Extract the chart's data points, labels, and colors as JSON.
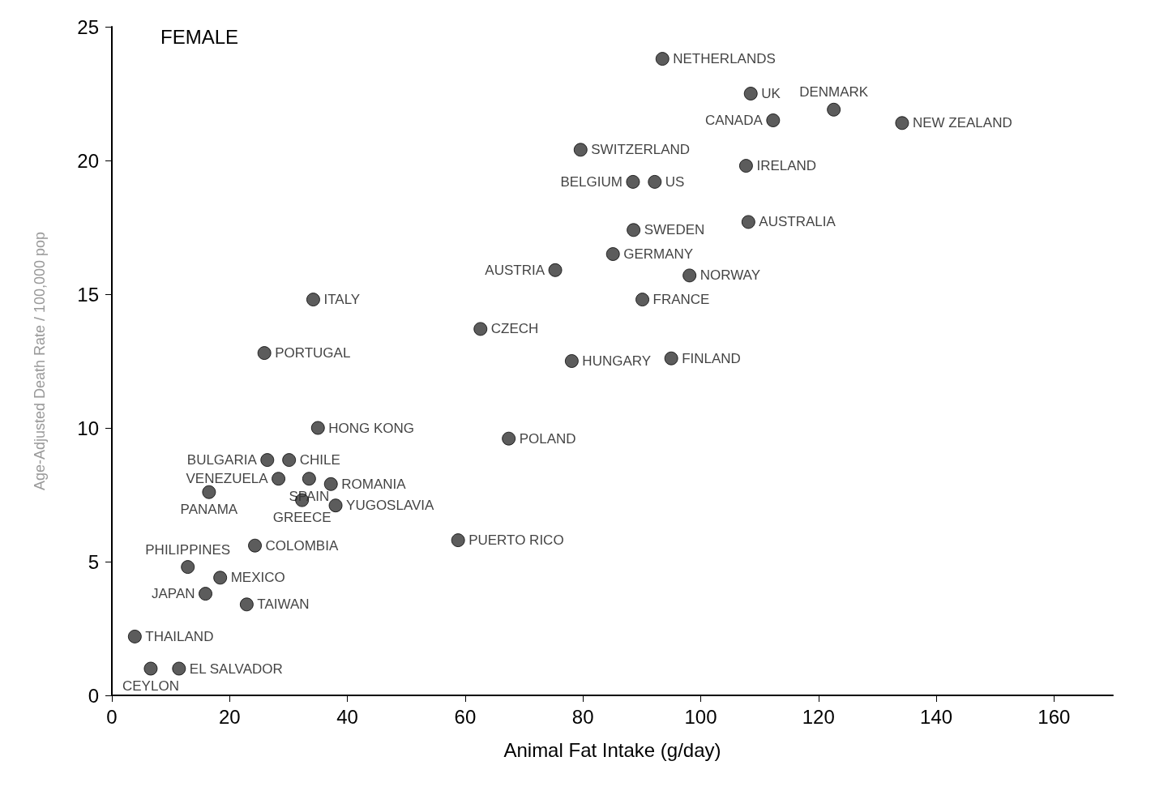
{
  "chart_data": {
    "type": "scatter",
    "title": "FEMALE",
    "xlabel": "Animal Fat Intake (g/day)",
    "ylabel": "Age-Adjusted Death Rate / 100,000 pop",
    "x": [
      93.5,
      108.5,
      122.6,
      112.3,
      134.2,
      79.6,
      107.7,
      88.5,
      92.2,
      88.6,
      108.1,
      85.1,
      75.3,
      98.1,
      90.1,
      34.2,
      62.6,
      95,
      25.9,
      78.1,
      35,
      67.4,
      26.4,
      30.1,
      28.3,
      33.5,
      37.2,
      16.5,
      32.3,
      38,
      58.8,
      24.3,
      12.9,
      18.4,
      15.9,
      22.9,
      3.9,
      6.6,
      11.4
    ],
    "values": [
      23.8,
      22.5,
      21.9,
      21.5,
      21.4,
      20.4,
      19.8,
      19.2,
      19.2,
      17.4,
      17.7,
      16.5,
      15.9,
      15.7,
      14.8,
      14.8,
      13.7,
      12.6,
      12.8,
      12.5,
      10,
      9.6,
      8.8,
      8.8,
      8.1,
      8.1,
      7.9,
      7.6,
      7.3,
      7.1,
      5.8,
      5.6,
      4.8,
      4.4,
      3.8,
      3.4,
      2.2,
      1,
      1
    ],
    "color": "#333333",
    "marker": "circle",
    "grid": false,
    "xlim": [
      0,
      170
    ],
    "xticks": [
      0,
      20,
      40,
      60,
      80,
      100,
      120,
      140,
      160
    ],
    "ylim": [
      0,
      25
    ],
    "yticks": [
      0,
      5,
      10,
      15,
      20,
      25
    ],
    "annotations": [
      {
        "text": "NETHERLANDS",
        "x": 93.5,
        "y": 23.8
      },
      {
        "text": "UK",
        "x": 108.5,
        "y": 22.5
      },
      {
        "text": "DENMARK",
        "x": 122.6,
        "y": 21.9
      },
      {
        "text": "CANADA",
        "x": 112.3,
        "y": 21.5
      },
      {
        "text": "NEW ZEALAND",
        "x": 134.2,
        "y": 21.4
      },
      {
        "text": "SWITZERLAND",
        "x": 79.6,
        "y": 20.4
      },
      {
        "text": "IRELAND",
        "x": 107.7,
        "y": 19.8
      },
      {
        "text": "BELGIUM",
        "x": 88.5,
        "y": 19.2
      },
      {
        "text": "US",
        "x": 92.2,
        "y": 19.2
      },
      {
        "text": "SWEDEN",
        "x": 88.6,
        "y": 17.4
      },
      {
        "text": "AUSTRALIA",
        "x": 108.1,
        "y": 17.7
      },
      {
        "text": "GERMANY",
        "x": 85.1,
        "y": 16.5
      },
      {
        "text": "AUSTRIA",
        "x": 75.3,
        "y": 15.9
      },
      {
        "text": "NORWAY",
        "x": 98.1,
        "y": 15.7
      },
      {
        "text": "FRANCE",
        "x": 90.1,
        "y": 14.8
      },
      {
        "text": "ITALY",
        "x": 34.2,
        "y": 14.8
      },
      {
        "text": "CZECH",
        "x": 62.6,
        "y": 13.7
      },
      {
        "text": "FINLAND",
        "x": 95,
        "y": 12.6
      },
      {
        "text": "PORTUGAL",
        "x": 25.9,
        "y": 12.8
      },
      {
        "text": "HUNGARY",
        "x": 78.1,
        "y": 12.5
      },
      {
        "text": "HONG KONG",
        "x": 35,
        "y": 10
      },
      {
        "text": "POLAND",
        "x": 67.4,
        "y": 9.6
      },
      {
        "text": "BULGARIA",
        "x": 26.4,
        "y": 8.8
      },
      {
        "text": "CHILE",
        "x": 30.1,
        "y": 8.8
      },
      {
        "text": "VENEZUELA",
        "x": 28.3,
        "y": 8.1
      },
      {
        "text": "SPAIN",
        "x": 33.5,
        "y": 8.1
      },
      {
        "text": "ROMANIA",
        "x": 37.2,
        "y": 7.9
      },
      {
        "text": "PANAMA",
        "x": 16.5,
        "y": 7.6
      },
      {
        "text": "GREECE",
        "x": 32.3,
        "y": 7.3
      },
      {
        "text": "YUGOSLAVIA",
        "x": 38,
        "y": 7.1
      },
      {
        "text": "PUERTO RICO",
        "x": 58.8,
        "y": 5.8
      },
      {
        "text": "COLOMBIA",
        "x": 24.3,
        "y": 5.6
      },
      {
        "text": "PHILIPPINES",
        "x": 12.9,
        "y": 4.8
      },
      {
        "text": "MEXICO",
        "x": 18.4,
        "y": 4.4
      },
      {
        "text": "JAPAN",
        "x": 15.9,
        "y": 3.8
      },
      {
        "text": "TAIWAN",
        "x": 22.9,
        "y": 3.4
      },
      {
        "text": "THAILAND",
        "x": 3.9,
        "y": 2.2
      },
      {
        "text": "CEYLON",
        "x": 6.6,
        "y": 1
      },
      {
        "text": "EL SALVADOR",
        "x": 11.4,
        "y": 1
      }
    ]
  }
}
